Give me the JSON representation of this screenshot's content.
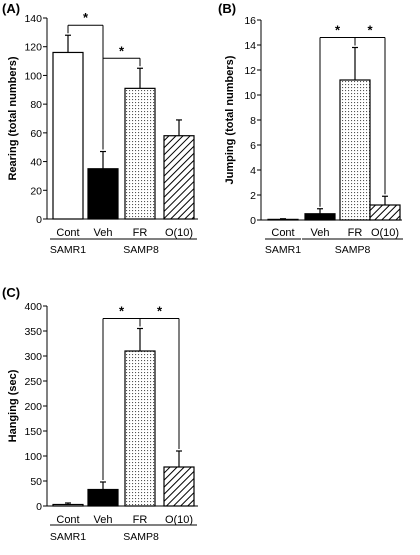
{
  "chart_data": [
    {
      "panel_label": "(A)",
      "type": "bar",
      "categories": [
        "Cont",
        "Veh",
        "FR",
        "O(10)"
      ],
      "values": [
        116,
        35,
        91,
        58
      ],
      "errors": [
        12,
        12,
        14,
        11
      ],
      "patterns": [
        "empty",
        "solid",
        "dots",
        "hatch"
      ],
      "ylabel": "Rearing (total numbers)",
      "ylim": [
        0,
        140
      ],
      "yticks": [
        0,
        20,
        40,
        60,
        80,
        100,
        120,
        140
      ],
      "groups": [
        {
          "label": "SAMR1",
          "from": 0,
          "to": 0
        },
        {
          "label": "SAMP8",
          "from": 1,
          "to": 3
        }
      ],
      "significance": [
        {
          "from": 0,
          "to": 1,
          "label": "*"
        },
        {
          "from": 1,
          "to": 2,
          "label": "*"
        }
      ]
    },
    {
      "panel_label": "(B)",
      "type": "bar",
      "categories": [
        "Cont",
        "Veh",
        "FR",
        "O(10)"
      ],
      "values": [
        0.05,
        0.5,
        11.2,
        1.2
      ],
      "errors": [
        0.05,
        0.4,
        2.6,
        0.7
      ],
      "patterns": [
        "empty",
        "solid",
        "dots",
        "hatch"
      ],
      "ylabel": "Jumping (total numbers)",
      "ylim": [
        0,
        16
      ],
      "yticks": [
        0,
        2,
        4,
        6,
        8,
        10,
        12,
        14,
        16
      ],
      "groups": [
        {
          "label": "SAMR1",
          "from": 0,
          "to": 0
        },
        {
          "label": "SAMP8",
          "from": 1,
          "to": 3
        }
      ],
      "significance": [
        {
          "from": 1,
          "to": 2,
          "label": "*"
        },
        {
          "from": 2,
          "to": 3,
          "label": "*"
        }
      ]
    },
    {
      "panel_label": "(C)",
      "type": "bar",
      "categories": [
        "Cont",
        "Veh",
        "FR",
        "O(10)"
      ],
      "values": [
        3,
        33,
        310,
        78
      ],
      "errors": [
        3,
        15,
        45,
        32
      ],
      "patterns": [
        "empty",
        "solid",
        "dots",
        "hatch"
      ],
      "ylabel": "Hanging (sec)",
      "ylim": [
        0,
        400
      ],
      "yticks": [
        0,
        50,
        100,
        150,
        200,
        250,
        300,
        350,
        400
      ],
      "groups": [
        {
          "label": "SAMR1",
          "from": 0,
          "to": 0
        },
        {
          "label": "SAMP8",
          "from": 1,
          "to": 3
        }
      ],
      "significance": [
        {
          "from": 1,
          "to": 2,
          "label": "*"
        },
        {
          "from": 2,
          "to": 3,
          "label": "*"
        }
      ]
    }
  ]
}
